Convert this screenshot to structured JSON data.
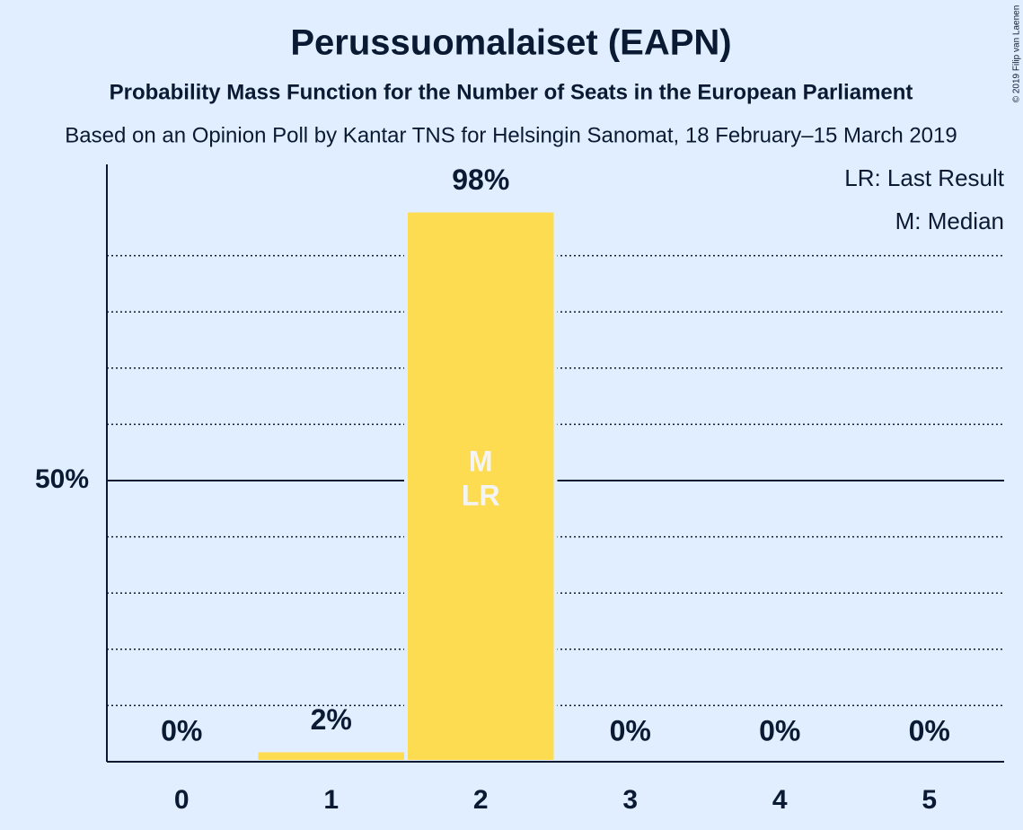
{
  "chart_data": {
    "type": "bar",
    "title": "Perussuomalaiset (EAPN)",
    "subtitle": "Probability Mass Function for the Number of Seats in the European Parliament",
    "caption": "Based on an Opinion Poll by Kantar TNS for Helsingin Sanomat, 18 February–15 March 2019",
    "copyright": "© 2019 Filip van Laenen",
    "categories": [
      "0",
      "1",
      "2",
      "3",
      "4",
      "5"
    ],
    "values": [
      0,
      2,
      98,
      0,
      0,
      0
    ],
    "value_labels": [
      "0%",
      "2%",
      "98%",
      "0%",
      "0%",
      "0%"
    ],
    "color": "#fddc52",
    "ylim": [
      0,
      100
    ],
    "yticks": [
      {
        "value": 50,
        "label": "50%"
      }
    ],
    "minor_grid": [
      10,
      20,
      30,
      40,
      60,
      70,
      80,
      90
    ],
    "median": {
      "value": 2,
      "label": "M"
    },
    "last_result": {
      "value": 2,
      "label": "LR"
    },
    "legend": [
      "LR: Last Result",
      "M: Median"
    ]
  }
}
